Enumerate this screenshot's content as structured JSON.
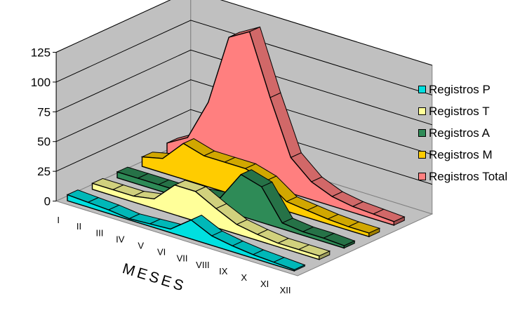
{
  "chart_data": {
    "type": "area",
    "view": "3d",
    "title": "",
    "xlabel": "MESES",
    "ylabel": "",
    "categories": [
      "I",
      "II",
      "III",
      "IV",
      "V",
      "VI",
      "VII",
      "VIII",
      "IX",
      "X",
      "XI",
      "XII"
    ],
    "ylim": [
      0,
      125
    ],
    "yticks": [
      "0",
      "25",
      "50",
      "75",
      "100",
      "125"
    ],
    "grid": true,
    "legend_position": "right",
    "series": [
      {
        "name": "Registros P",
        "color": "#00e0e0",
        "values": [
          5,
          4,
          3,
          1,
          2,
          3,
          16,
          8,
          5,
          3,
          2,
          1
        ]
      },
      {
        "name": "Registros T",
        "color": "#ffff99",
        "values": [
          5,
          5,
          5,
          8,
          25,
          25,
          16,
          8,
          5,
          3,
          3,
          3
        ]
      },
      {
        "name": "Registros A",
        "color": "#2e8b57",
        "values": [
          5,
          5,
          5,
          5,
          8,
          10,
          35,
          30,
          5,
          3,
          3,
          2
        ]
      },
      {
        "name": "Registros M",
        "color": "#ffcc00",
        "values": [
          8,
          12,
          30,
          25,
          25,
          25,
          20,
          8,
          6,
          4,
          3,
          3
        ]
      },
      {
        "name": "Registros Total",
        "color": "#ff7f7f",
        "values": [
          10,
          20,
          55,
          115,
          125,
          75,
          30,
          15,
          8,
          5,
          4,
          3
        ]
      }
    ]
  }
}
